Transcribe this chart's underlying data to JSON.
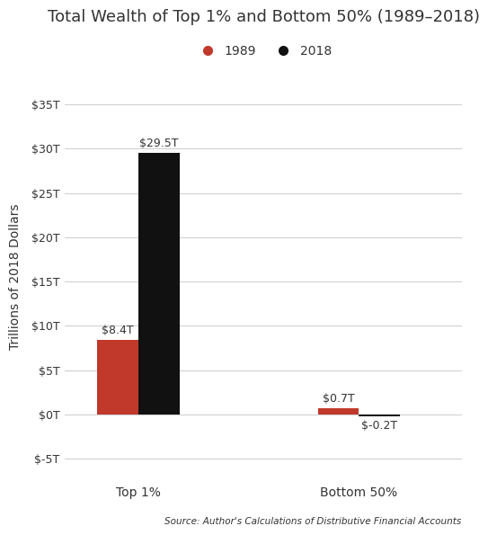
{
  "title": "Total Wealth of Top 1% and Bottom 50% (1989–2018)",
  "ylabel": "Trillions of 2018 Dollars",
  "source": "Source: Author's Calculations of Distributive Financial Accounts",
  "categories": [
    "Top 1%",
    "Bottom 50%"
  ],
  "values_1989": [
    8.4,
    0.7
  ],
  "values_2018": [
    29.5,
    -0.2
  ],
  "bar_color_1989": "#c0392b",
  "bar_color_2018": "#111111",
  "yticks": [
    -5,
    0,
    5,
    10,
    15,
    20,
    25,
    30,
    35
  ],
  "ylim": [
    -7,
    38
  ],
  "bar_width": 0.28,
  "x_positions": [
    0.5,
    2.0
  ],
  "xlim": [
    0.0,
    2.7
  ],
  "background_color": "#ffffff",
  "grid_color": "#d0d0d0",
  "text_color": "#333333",
  "legend_1989": "1989",
  "legend_2018": "2018",
  "title_fontsize": 13,
  "label_fontsize": 10,
  "tick_fontsize": 9,
  "source_fontsize": 7.5,
  "value_label_fontsize": 9
}
